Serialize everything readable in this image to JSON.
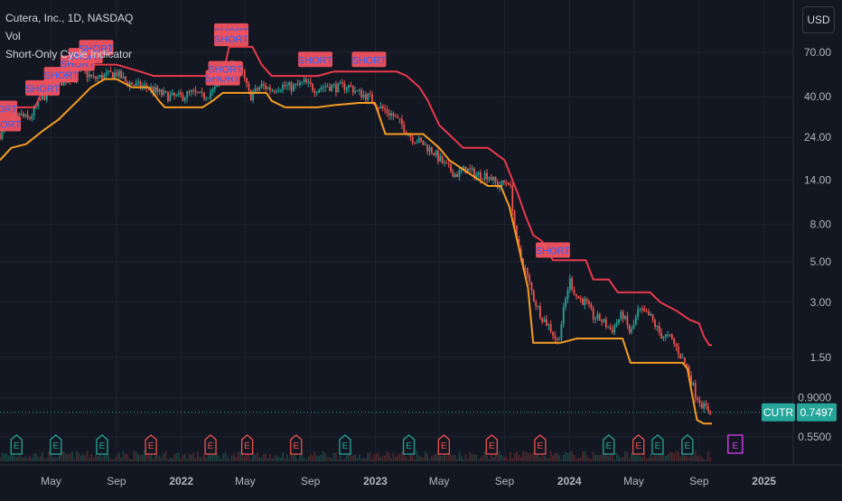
{
  "header": {
    "symbol_line": "Cutera, Inc., 1D, NASDAQ",
    "indicator_vol": "Vol",
    "indicator_cycle": "Short-Only Cycle Indicator",
    "currency": "USD"
  },
  "colors": {
    "background": "#131722",
    "grid": "#1f2330",
    "text": "#b2b5be",
    "upper_line": "#e8394b",
    "lower_line": "#f59d22",
    "candle_up": "#26a69a",
    "candle_down": "#ef5350",
    "short_label": "#f0515f",
    "short_text": "#2962ff",
    "last_price_bg": "#26a69a",
    "earnings_green": "#26a69a",
    "earnings_red": "#ef5350",
    "earnings_future": "#e040fb"
  },
  "price_tag": {
    "symbol": "CUTR",
    "value": "0.7497"
  },
  "chart_data": {
    "type": "line",
    "title": "",
    "yscale": "log",
    "ylim": [
      0.46,
      120
    ],
    "y_ticks": [
      "70.00",
      "40.00",
      "24.00",
      "14.00",
      "8.00",
      "5.00",
      "3.00",
      "1.50",
      "0.9000",
      "0.5500"
    ],
    "x_ticks": [
      "May",
      "Sep",
      "2022",
      "May",
      "Sep",
      "2023",
      "May",
      "Sep",
      "2024",
      "May",
      "Sep",
      "2025"
    ],
    "x_range": [
      "2021-01-25",
      "2025-02-25"
    ],
    "series": [
      {
        "name": "",
        "role": "upper",
        "x": [
          "2021-01-25",
          "2021-04-01",
          "2021-04-15",
          "2021-05-10",
          "2021-06-01",
          "2021-07-01",
          "2021-09-01",
          "2021-10-15",
          "2021-11-10",
          "2021-12-30",
          "2022-01-20",
          "2022-03-20",
          "2022-04-01",
          "2022-05-15",
          "2022-06-01",
          "2022-06-20",
          "2022-08-01",
          "2022-09-15",
          "2022-10-15",
          "2022-11-15",
          "2022-12-15",
          "2023-02-10",
          "2023-03-01",
          "2023-03-25",
          "2023-04-10",
          "2023-05-01",
          "2023-06-15",
          "2023-08-01",
          "2023-09-01",
          "2023-09-25",
          "2023-10-10",
          "2023-10-25",
          "2023-11-10",
          "2023-12-01",
          "2024-01-15",
          "2024-02-01",
          "2024-02-15",
          "2024-03-15",
          "2024-04-01",
          "2024-05-01",
          "2024-06-01",
          "2024-06-20",
          "2024-07-20",
          "2024-08-15",
          "2024-09-01",
          "2024-09-10",
          "2024-09-20",
          "2024-09-25"
        ],
        "y": [
          35,
          35,
          43,
          52,
          55,
          60,
          60,
          55,
          52,
          52,
          52,
          52,
          75,
          75,
          60,
          52,
          52,
          52,
          55,
          55,
          55,
          55,
          52,
          45,
          38,
          28,
          21,
          21,
          18,
          12,
          9,
          7,
          6.5,
          5.1,
          5.1,
          5.1,
          4.0,
          4.0,
          3.4,
          3.4,
          3.4,
          3.0,
          2.7,
          2.4,
          2.3,
          1.95,
          1.75,
          1.75
        ]
      },
      {
        "name": "",
        "role": "lower",
        "x": [
          "2021-01-25",
          "2021-02-15",
          "2021-03-15",
          "2021-04-15",
          "2021-05-15",
          "2021-06-20",
          "2021-07-15",
          "2021-08-10",
          "2021-09-01",
          "2021-10-01",
          "2021-11-01",
          "2021-11-20",
          "2021-12-01",
          "2022-01-01",
          "2022-02-10",
          "2022-03-01",
          "2022-03-20",
          "2022-04-01",
          "2022-05-15",
          "2022-06-10",
          "2022-06-20",
          "2022-07-15",
          "2022-09-15",
          "2022-10-15",
          "2022-12-01",
          "2022-12-31",
          "2023-01-20",
          "2023-04-01",
          "2023-05-01",
          "2023-05-20",
          "2023-08-01",
          "2023-08-25",
          "2023-09-10",
          "2023-09-25",
          "2023-10-15",
          "2023-10-25",
          "2023-11-15",
          "2023-12-15",
          "2024-01-15",
          "2024-02-15",
          "2024-03-15",
          "2024-04-10",
          "2024-04-25",
          "2024-06-01",
          "2024-07-15",
          "2024-08-01",
          "2024-08-10",
          "2024-08-20",
          "2024-08-28",
          "2024-09-10",
          "2024-09-25"
        ],
        "y": [
          18,
          21,
          22,
          26,
          30,
          38,
          45,
          50,
          50,
          45,
          45,
          38,
          35,
          35,
          35,
          38,
          42,
          42,
          42,
          42,
          38,
          35,
          35,
          36,
          37,
          37,
          25,
          25,
          21,
          18,
          13,
          13,
          10,
          6.5,
          3.6,
          1.8,
          1.8,
          1.8,
          1.9,
          1.9,
          1.9,
          1.9,
          1.4,
          1.4,
          1.4,
          1.4,
          1.3,
          0.9,
          0.68,
          0.65,
          0.65
        ]
      },
      {
        "name": "",
        "role": "price",
        "x": [
          "2021-01-25",
          "2021-02-15",
          "2021-03-01",
          "2021-03-20",
          "2021-04-10",
          "2021-05-01",
          "2021-05-20",
          "2021-06-10",
          "2021-07-01",
          "2021-07-20",
          "2021-08-10",
          "2021-09-01",
          "2021-09-20",
          "2021-10-10",
          "2021-11-01",
          "2021-11-20",
          "2021-12-10",
          "2022-01-01",
          "2022-01-20",
          "2022-02-10",
          "2022-03-01",
          "2022-03-20",
          "2022-04-10",
          "2022-04-25",
          "2022-05-10",
          "2022-06-01",
          "2022-06-20",
          "2022-07-10",
          "2022-08-01",
          "2022-08-20",
          "2022-09-10",
          "2022-10-01",
          "2022-10-20",
          "2022-11-10",
          "2022-12-01",
          "2022-12-20",
          "2023-01-10",
          "2023-02-01",
          "2023-02-20",
          "2023-03-10",
          "2023-04-01",
          "2023-04-20",
          "2023-05-10",
          "2023-06-01",
          "2023-06-20",
          "2023-07-10",
          "2023-08-01",
          "2023-08-20",
          "2023-09-10",
          "2023-09-25",
          "2023-10-10",
          "2023-10-25",
          "2023-11-10",
          "2023-11-25",
          "2023-12-10",
          "2024-01-01",
          "2024-01-15",
          "2024-02-01",
          "2024-02-15",
          "2024-03-01",
          "2024-03-20",
          "2024-04-10",
          "2024-04-25",
          "2024-05-10",
          "2024-06-01",
          "2024-06-20",
          "2024-07-10",
          "2024-07-25",
          "2024-08-10",
          "2024-08-25",
          "2024-09-10",
          "2024-09-25"
        ],
        "y": [
          25,
          28,
          32,
          30,
          38,
          44,
          48,
          52,
          55,
          50,
          52,
          54,
          48,
          46,
          45,
          42,
          40,
          40,
          42,
          40,
          43,
          48,
          62,
          55,
          40,
          46,
          44,
          46,
          45,
          48,
          44,
          46,
          45,
          46,
          42,
          40,
          35,
          32,
          28,
          24,
          22,
          20,
          17,
          15,
          16,
          15,
          15,
          13,
          14,
          6,
          4.5,
          3.2,
          2.5,
          2.2,
          1.8,
          4.0,
          3.2,
          3.0,
          2.5,
          2.4,
          2.1,
          2.6,
          2.0,
          2.7,
          2.5,
          2.0,
          1.9,
          1.6,
          1.3,
          0.95,
          0.8,
          0.75
        ]
      }
    ],
    "annotations": [
      {
        "date": "2021-01-25",
        "price": 34,
        "text": "SHORT"
      },
      {
        "date": "2021-02-01",
        "price": 28,
        "text": "SHORT"
      },
      {
        "date": "2021-05-20",
        "price": 52,
        "text": "SHORT"
      },
      {
        "date": "2021-06-20",
        "price": 60,
        "text": "SHORT"
      },
      {
        "date": "2021-07-05",
        "price": 66,
        "text": "SHORT"
      },
      {
        "date": "2021-07-25",
        "price": 73,
        "text": "SHORT"
      },
      {
        "date": "2021-04-15",
        "price": 44,
        "text": "SHORT"
      },
      {
        "date": "2022-03-20",
        "price": 50,
        "text": "SHORT"
      },
      {
        "date": "2022-03-25",
        "price": 56,
        "text": "SHORT"
      },
      {
        "date": "2022-04-05",
        "price": 90,
        "text": "SHORT"
      },
      {
        "date": "2022-04-05",
        "price": 82,
        "text": "SHORT"
      },
      {
        "date": "2022-09-10",
        "price": 63,
        "text": "SHORT"
      },
      {
        "date": "2022-12-20",
        "price": 63,
        "text": "SHORT"
      },
      {
        "date": "2023-12-01",
        "price": 5.7,
        "text": "SHORT"
      }
    ],
    "earnings": [
      {
        "date": "2021-02-25",
        "status": "beat"
      },
      {
        "date": "2021-05-10",
        "status": "beat"
      },
      {
        "date": "2021-08-05",
        "status": "beat"
      },
      {
        "date": "2021-11-05",
        "status": "miss"
      },
      {
        "date": "2022-02-25",
        "status": "miss"
      },
      {
        "date": "2022-05-05",
        "status": "miss"
      },
      {
        "date": "2022-08-05",
        "status": "miss"
      },
      {
        "date": "2022-11-05",
        "status": "beat"
      },
      {
        "date": "2023-03-05",
        "status": "beat"
      },
      {
        "date": "2023-05-10",
        "status": "miss"
      },
      {
        "date": "2023-08-08",
        "status": "miss"
      },
      {
        "date": "2023-11-07",
        "status": "miss"
      },
      {
        "date": "2024-03-15",
        "status": "beat"
      },
      {
        "date": "2024-05-10",
        "status": "miss"
      },
      {
        "date": "2024-06-15",
        "status": "beat"
      },
      {
        "date": "2024-08-10",
        "status": "beat"
      },
      {
        "date": "2024-11-08",
        "status": "future"
      }
    ]
  }
}
